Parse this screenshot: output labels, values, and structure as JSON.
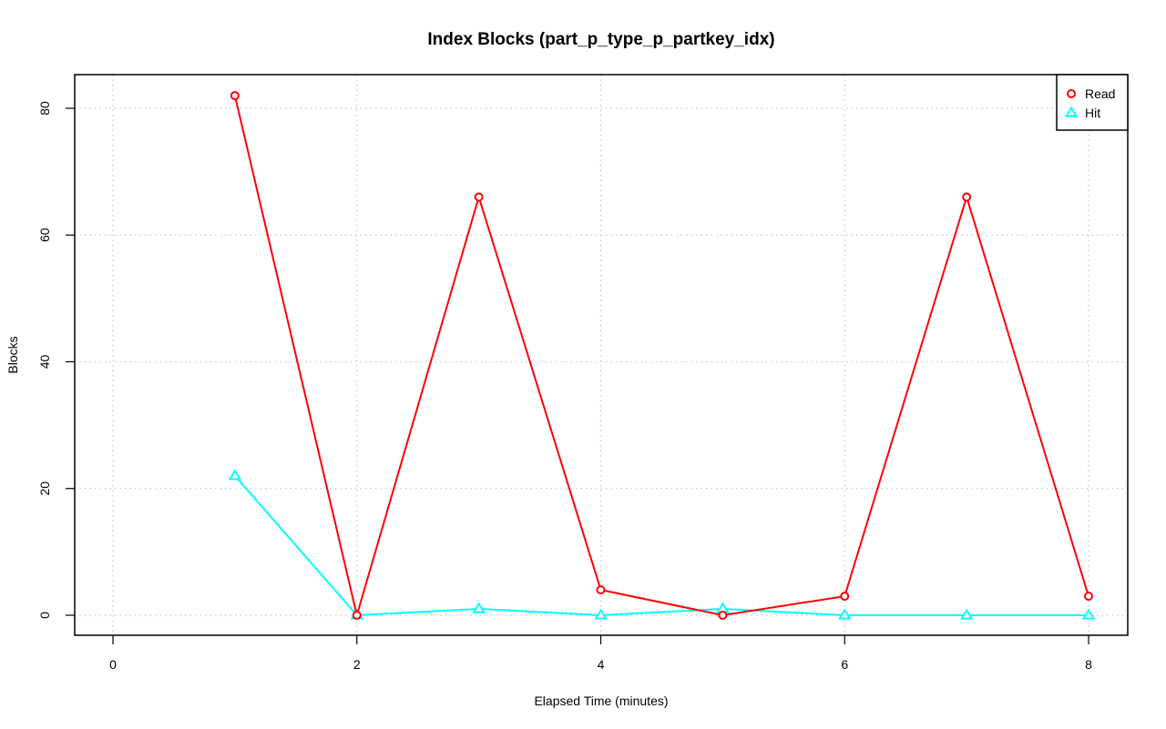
{
  "chart_data": {
    "type": "line",
    "title": "Index Blocks (part_p_type_p_partkey_idx)",
    "xlabel": "Elapsed Time (minutes)",
    "ylabel": "Blocks",
    "xlim": [
      -0.3,
      8.32
    ],
    "ylim": [
      -3.2,
      85
    ],
    "xticks": [
      0,
      2,
      4,
      6,
      8
    ],
    "yticks": [
      0,
      20,
      40,
      60,
      80
    ],
    "grid": true,
    "legend_position": "topright",
    "x": [
      1,
      2,
      3,
      4,
      5,
      6,
      7,
      8
    ],
    "series": [
      {
        "name": "Read",
        "color": "#ff0000",
        "marker": "circle",
        "values": [
          82,
          0,
          66,
          4,
          0,
          3,
          66,
          3
        ]
      },
      {
        "name": "Hit",
        "color": "#00ffff",
        "marker": "triangle",
        "values": [
          22,
          0,
          1,
          0,
          1,
          0,
          0,
          0
        ]
      }
    ]
  }
}
